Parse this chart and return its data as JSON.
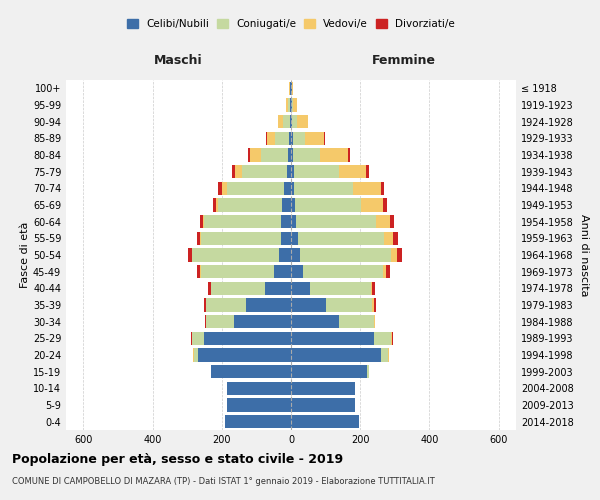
{
  "age_groups": [
    "0-4",
    "5-9",
    "10-14",
    "15-19",
    "20-24",
    "25-29",
    "30-34",
    "35-39",
    "40-44",
    "45-49",
    "50-54",
    "55-59",
    "60-64",
    "65-69",
    "70-74",
    "75-79",
    "80-84",
    "85-89",
    "90-94",
    "95-99",
    "100+"
  ],
  "birth_years": [
    "2014-2018",
    "2009-2013",
    "2004-2008",
    "1999-2003",
    "1994-1998",
    "1989-1993",
    "1984-1988",
    "1979-1983",
    "1974-1978",
    "1969-1973",
    "1964-1968",
    "1959-1963",
    "1954-1958",
    "1949-1953",
    "1944-1948",
    "1939-1943",
    "1934-1938",
    "1929-1933",
    "1924-1928",
    "1919-1923",
    "≤ 1918"
  ],
  "colors": {
    "celibi": "#3d6ea8",
    "coniugati": "#c5d9a0",
    "vedovi": "#f5c96a",
    "divorziati": "#cc2222"
  },
  "males": {
    "celibi": [
      190,
      185,
      185,
      230,
      270,
      250,
      165,
      130,
      75,
      50,
      35,
      30,
      30,
      25,
      20,
      12,
      8,
      5,
      3,
      2,
      2
    ],
    "coniugati": [
      0,
      0,
      0,
      2,
      10,
      35,
      80,
      115,
      155,
      210,
      250,
      230,
      220,
      185,
      165,
      130,
      80,
      40,
      20,
      8,
      2
    ],
    "vedovi": [
      0,
      0,
      0,
      0,
      2,
      2,
      2,
      2,
      2,
      2,
      2,
      3,
      5,
      8,
      15,
      20,
      30,
      25,
      15,
      5,
      2
    ],
    "divorziati": [
      0,
      0,
      0,
      0,
      2,
      2,
      2,
      5,
      8,
      10,
      12,
      10,
      8,
      8,
      10,
      8,
      5,
      2,
      0,
      0,
      0
    ]
  },
  "females": {
    "nubili": [
      195,
      185,
      185,
      220,
      260,
      240,
      140,
      100,
      55,
      35,
      25,
      20,
      15,
      12,
      10,
      8,
      5,
      5,
      3,
      2,
      2
    ],
    "coniugate": [
      0,
      0,
      0,
      5,
      20,
      50,
      100,
      135,
      175,
      230,
      265,
      250,
      230,
      190,
      170,
      130,
      80,
      35,
      15,
      5,
      2
    ],
    "vedove": [
      0,
      0,
      0,
      0,
      2,
      2,
      2,
      5,
      5,
      8,
      15,
      25,
      40,
      65,
      80,
      80,
      80,
      55,
      30,
      10,
      3
    ],
    "divorziate": [
      0,
      0,
      0,
      0,
      2,
      2,
      2,
      5,
      8,
      12,
      15,
      15,
      12,
      10,
      10,
      8,
      5,
      3,
      2,
      0,
      0
    ]
  },
  "xlim": 650,
  "title": "Popolazione per età, sesso e stato civile - 2019",
  "subtitle": "COMUNE DI CAMPOBELLO DI MAZARA (TP) - Dati ISTAT 1° gennaio 2019 - Elaborazione TUTTITALIA.IT",
  "xlabel_left": "Maschi",
  "xlabel_right": "Femmine",
  "ylabel_left": "Fasce di età",
  "ylabel_right": "Anni di nascita",
  "legend_labels": [
    "Celibi/Nubili",
    "Coniugati/e",
    "Vedovi/e",
    "Divorziati/e"
  ],
  "bg_color": "#f0f0f0",
  "plot_bg": "#ffffff",
  "grid_color": "#cccccc"
}
